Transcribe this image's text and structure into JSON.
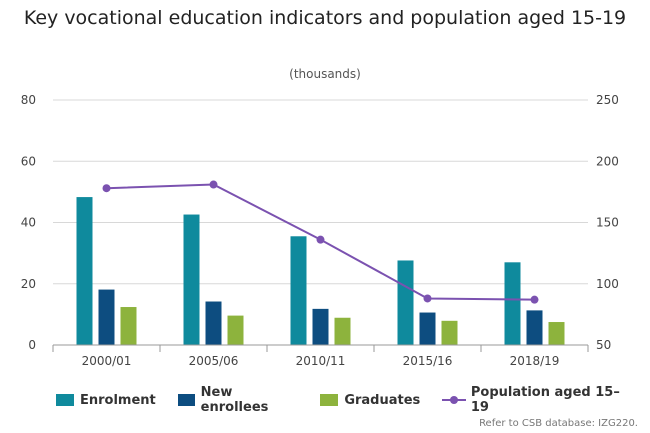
{
  "chart_data": {
    "type": "bar",
    "title": "Key vocational education indicators and population aged 15-19",
    "subtitle": "(thousands)",
    "categories": [
      "2000/01",
      "2005/06",
      "2010/11",
      "2015/16",
      "2018/19"
    ],
    "ylim": [
      0,
      80
    ],
    "yticks": [
      "0",
      "20",
      "40",
      "60",
      "80"
    ],
    "y2lim": [
      50,
      250
    ],
    "y2ticks": [
      "50",
      "100",
      "150",
      "200",
      "250"
    ],
    "grid": true,
    "legend_position": "bottom",
    "series": [
      {
        "name": "Enrolment",
        "type": "bar",
        "axis": "left",
        "color": "#0f8a9d",
        "values": [
          48.3,
          42.6,
          35.5,
          27.6,
          27.0
        ]
      },
      {
        "name": "New enrollees",
        "type": "bar",
        "axis": "left",
        "color": "#0d4d80",
        "values": [
          18.1,
          14.2,
          11.8,
          10.6,
          11.3
        ]
      },
      {
        "name": "Graduates",
        "type": "bar",
        "axis": "left",
        "color": "#8db33d",
        "values": [
          12.4,
          9.6,
          8.9,
          7.9,
          7.5
        ]
      },
      {
        "name": "Population aged 15–19",
        "type": "line",
        "axis": "right",
        "color": "#7b52b0",
        "values": [
          178,
          181,
          136,
          88,
          87
        ]
      }
    ]
  },
  "source_note": "Refer to CSB database: IZG220."
}
